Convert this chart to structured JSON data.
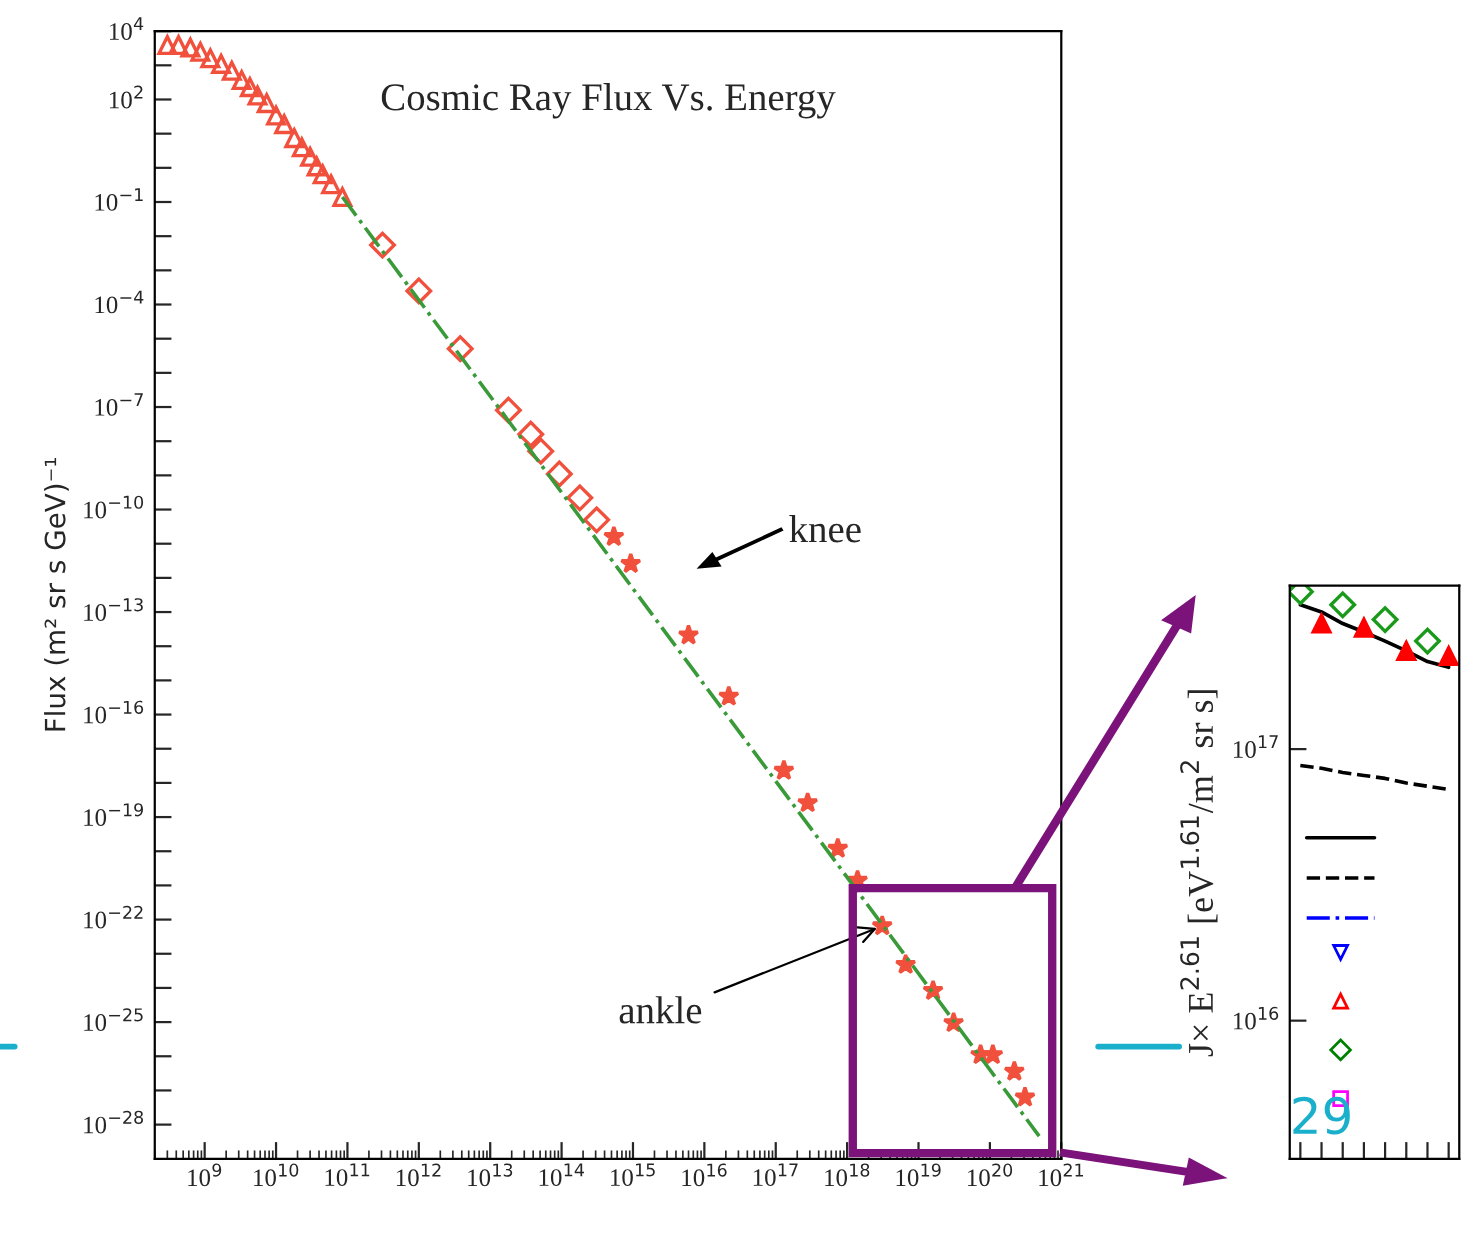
{
  "chart_data": [
    {
      "type": "scatter",
      "title": "Cosmic Ray Flux Vs. Energy",
      "ylabel": "Flux (m² sr s GeV)⁻¹",
      "log": "xy",
      "xlim": [
        200000000.0,
        1e+21
      ],
      "ylim": [
        1e-29,
        10000.0
      ],
      "xticks": [
        {
          "value": 1000000000.0,
          "label": "10$^{9}$"
        },
        {
          "value": 10000000000.0,
          "label": "10$^{10}$"
        },
        {
          "value": 100000000000.0,
          "label": "10$^{11}$"
        },
        {
          "value": 1000000000000.0,
          "label": "10$^{12}$"
        },
        {
          "value": 10000000000000.0,
          "label": "10$^{13}$"
        },
        {
          "value": 100000000000000.0,
          "label": "10$^{14}$"
        },
        {
          "value": 1000000000000000.0,
          "label": "10$^{15}$"
        },
        {
          "value": 1e+16,
          "label": "10$^{16}$"
        },
        {
          "value": 1e+17,
          "label": "10$^{17}$"
        },
        {
          "value": 1e+18,
          "label": "10$^{18}$"
        },
        {
          "value": 1e+19,
          "label": "10$^{19}$"
        },
        {
          "value": 1e+20,
          "label": "10$^{20}$"
        },
        {
          "value": 1e+21,
          "label": "10$^{21}$"
        }
      ],
      "yticks": [
        {
          "value": 10000.0,
          "label": "10$^{4}$"
        },
        {
          "value": 1000.0,
          "label": null
        },
        {
          "value": 100.0,
          "label": "10$^{2}$"
        },
        {
          "value": 10.0,
          "label": null
        },
        {
          "value": 1.0,
          "label": null
        },
        {
          "value": 0.1,
          "label": "10$^{−1}$"
        },
        {
          "value": 0.01,
          "label": null
        },
        {
          "value": 0.001,
          "label": null
        },
        {
          "value": 0.0001,
          "label": "10$^{−4}$"
        },
        {
          "value": 1e-05,
          "label": null
        },
        {
          "value": 1e-06,
          "label": null
        },
        {
          "value": 1e-07,
          "label": "10$^{−7}$"
        },
        {
          "value": 1e-08,
          "label": null
        },
        {
          "value": 1e-09,
          "label": null
        },
        {
          "value": 1e-10,
          "label": "10$^{−10}$"
        },
        {
          "value": 1e-11,
          "label": null
        },
        {
          "value": 1e-12,
          "label": null
        },
        {
          "value": 1e-13,
          "label": "10$^{−13}$"
        },
        {
          "value": 1e-14,
          "label": null
        },
        {
          "value": 1e-15,
          "label": null
        },
        {
          "value": 1e-16,
          "label": "10$^{−16}$"
        },
        {
          "value": 1e-17,
          "label": null
        },
        {
          "value": 1e-18,
          "label": null
        },
        {
          "value": 1e-19,
          "label": "10$^{−19}$"
        },
        {
          "value": 1e-20,
          "label": null
        },
        {
          "value": 1e-21,
          "label": null
        },
        {
          "value": 1e-22,
          "label": "10$^{−22}$"
        },
        {
          "value": 1e-23,
          "label": null
        },
        {
          "value": 1e-24,
          "label": null
        },
        {
          "value": 1e-25,
          "label": "10$^{−25}$"
        },
        {
          "value": 1e-26,
          "label": null
        },
        {
          "value": 1e-27,
          "label": null
        },
        {
          "value": 1e-28,
          "label": "10$^{−28}$"
        }
      ],
      "grid": false,
      "legend": false,
      "series": [
        {
          "color": "#f0503c",
          "marker": "triangle",
          "x": [
            300000000.0,
            430000000.0,
            630000000.0,
            870000000.0,
            1200000000.0,
            1700000000.0,
            2400000000.0,
            3300000000.0,
            4300000000.0,
            5500000000.0,
            7400000000.0,
            10000000000.0,
            13000000000.0,
            18000000000.0,
            23000000000.0,
            30000000000.0,
            37000000000.0,
            45000000000.0,
            59000000000.0,
            85000000000.0
          ],
          "values": [
            3900.0,
            3900.0,
            3300.0,
            2500.0,
            1600.0,
            1100.0,
            690.0,
            370.0,
            230.0,
            130.0,
            78,
            34,
            19,
            7.4,
            4.0,
            2.1,
            1.1,
            0.65,
            0.33,
            0.14
          ]
        },
        {
          "color": "#f0503c",
          "marker": "diamond",
          "x": [
            310000000000.0,
            1000000000000.0,
            3800000000000.0,
            18000000000000.0,
            37000000000000.0,
            51000000000000.0,
            93000000000000.0,
            180000000000000.0,
            310000000000000.0
          ],
          "values": [
            0.0055,
            0.00025,
            5.1e-06,
            8.1e-08,
            1.6e-08,
            5.1e-09,
            1.1e-09,
            2.2e-10,
            5e-11
          ]
        },
        {
          "color": "#f0503c",
          "marker": "star",
          "x": [
            540000000000000.0,
            930000000000000.0,
            6000000000000000.0,
            2.2e+16,
            1.3e+17,
            2.8e+17,
            7.4e+17,
            1.4e+18,
            3.1e+18,
            6.6e+18,
            1.6e+19,
            3.1e+19,
            7.4e+19,
            1.1e+20,
            2.2e+20,
            3.1e+20
          ],
          "values": [
            1.6e-11,
            2.6e-12,
            2.1e-14,
            3.4e-16,
            2.3e-18,
            2.6e-19,
            1.2e-20,
            1.4e-21,
            6.5e-23,
            4.8e-24,
            8.3e-25,
            9.5e-26,
            1.1e-26,
            1.1e-26,
            3.6e-27,
            6.3e-28
          ]
        },
        {
          "type": "line",
          "color": "#3a9a3a",
          "line_style": "dotted",
          "x": [
            85000000000.0,
            4.9e+20
          ],
          "values": [
            0.14,
            4.6e-29
          ]
        }
      ],
      "annotations": [
        "knee",
        {
          "text": "ankle",
          "x": 3.1e+18,
          "y": 6.5e-23
        },
        "29"
      ]
    },
    {
      "type": "scatter",
      "ylabel": "J× E$^{2.61}$ [eV$^{1.61}$/m$^{2}$ sr s]",
      "log": "y",
      "categories": [
        null,
        null,
        null,
        null,
        null,
        null,
        null,
        null
      ],
      "ylim": [
        3100000000000000.0,
        4e+17
      ],
      "yticks": [
        {
          "value": 1e+16,
          "label": "10$^{16}$"
        },
        {
          "value": 1e+17,
          "label": "10$^{17}$"
        }
      ],
      "grid": false,
      "legend": false,
      "series": [
        {
          "type": "line",
          "color": "#000000",
          "line_style": "solid",
          "values": [
            3.4e+17,
            3.2e+17,
            2.9e+17,
            2.7e+17,
            2.5e+17,
            2.3e+17,
            2.1e+17,
            2e+17
          ]
        },
        {
          "type": "line",
          "color": "#000000",
          "line_style": "dashed",
          "values": [
            8.7e+16,
            8.5e+16,
            8.2e+16,
            8e+16,
            7.8e+16,
            7.5e+16,
            7.3e+16,
            7.1e+16
          ]
        },
        {
          "color": "#1a9a1a",
          "marker": "diamond",
          "values": [
            3.8e+17,
            null,
            3.4e+17,
            null,
            3e+17,
            null,
            2.5e+17,
            null
          ]
        },
        {
          "color": "#ff0000",
          "marker": "triangle",
          "values": [
            null,
            2.9e+17,
            null,
            2.8e+17,
            null,
            2.3e+17,
            null,
            2.2e+17
          ]
        }
      ]
    }
  ]
}
